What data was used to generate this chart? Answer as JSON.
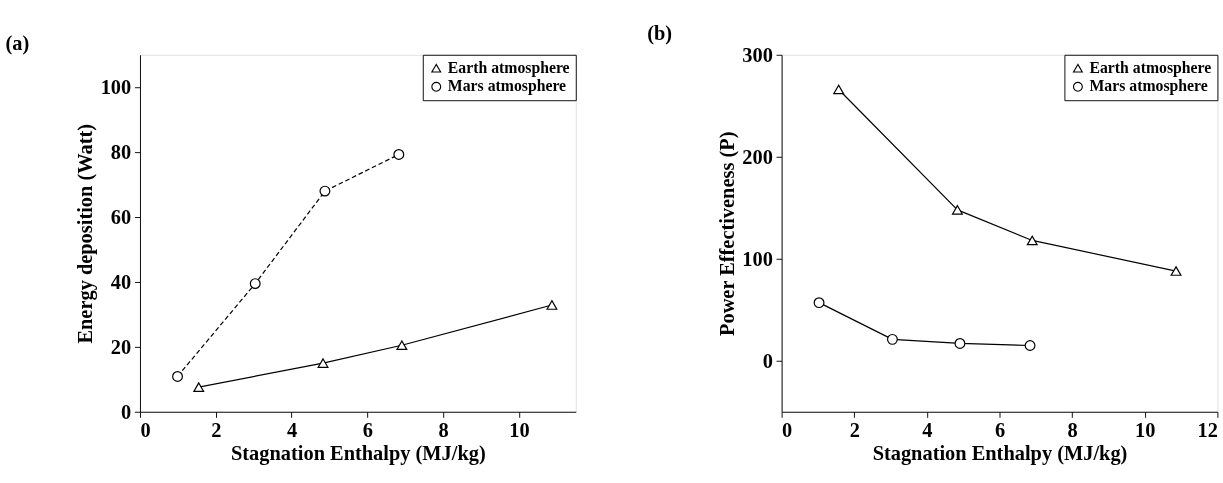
{
  "chart_data": [
    {
      "type": "line",
      "title": "(a)",
      "xlabel": "Stagnation Enthalpy (MJ/kg)",
      "ylabel": "Energy deposition (Watt)",
      "xlim": [
        0,
        11.5
      ],
      "xticks": [
        0,
        2,
        4,
        6,
        8,
        10
      ],
      "ylim": [
        0,
        110
      ],
      "yticks": [
        0,
        20,
        40,
        60,
        80,
        100
      ],
      "legend": "top right",
      "grid": false,
      "series": [
        {
          "name": "Earth atmosphere",
          "color": "#000000",
          "marker": "triangle",
          "line_style": "solid",
          "x": [
            1.55,
            4.83,
            6.91,
            10.87
          ],
          "values": [
            7.6,
            15.0,
            20.5,
            32.9
          ]
        },
        {
          "name": "Mars atmosphere",
          "color": "#000000",
          "marker": "circle",
          "line_style": "dashed",
          "x": [
            0.99,
            3.04,
            4.88,
            6.83
          ],
          "values": [
            10.9,
            39.5,
            68.0,
            79.3
          ]
        }
      ]
    },
    {
      "type": "line",
      "title": "(b)",
      "xlabel": "Stagnation Enthalpy (MJ/kg)",
      "ylabel": "Power Effectiveness (P)",
      "xlim": [
        0,
        12
      ],
      "xticks": [
        0,
        2,
        4,
        6,
        8,
        10,
        12
      ],
      "ylim": [
        -50,
        300
      ],
      "yticks": [
        0,
        100,
        200,
        300
      ],
      "legend": "top right",
      "grid": false,
      "series": [
        {
          "name": "Earth atmosphere",
          "color": "#000000",
          "marker": "triangle",
          "line_style": "solid",
          "x": [
            1.57,
            4.84,
            6.9,
            10.86
          ],
          "values": [
            266,
            148,
            118,
            88
          ]
        },
        {
          "name": "Mars atmosphere",
          "color": "#000000",
          "marker": "circle",
          "line_style": "solid",
          "x": [
            1.03,
            3.05,
            4.91,
            6.84
          ],
          "values": [
            57,
            21,
            17,
            15
          ]
        }
      ]
    }
  ]
}
